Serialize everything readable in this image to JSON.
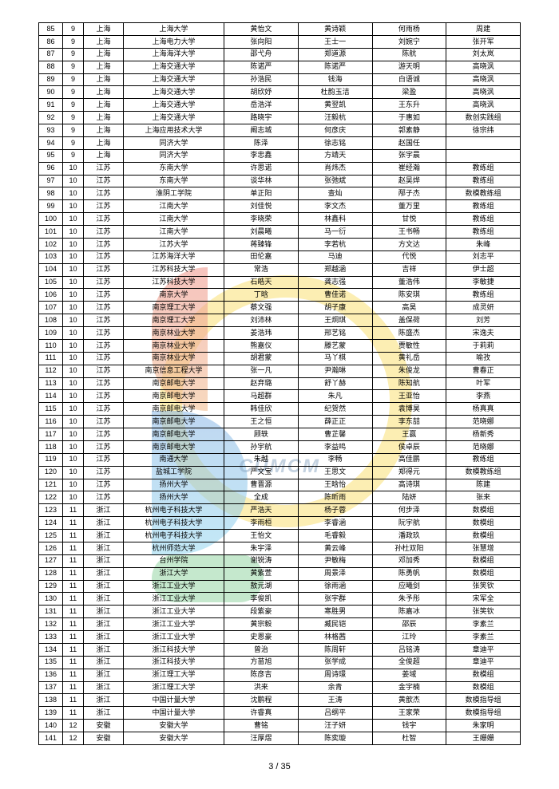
{
  "page_number": "3 / 35",
  "columns": [
    "c0",
    "c1",
    "c2",
    "c3",
    "c4",
    "c5",
    "c6",
    "c7"
  ],
  "rows": [
    [
      "85",
      "9",
      "上海",
      "上海大学",
      "黄怡文",
      "黄诗颖",
      "何雨杨",
      "周建"
    ],
    [
      "86",
      "9",
      "上海",
      "上海电力大学",
      "张向阳",
      "王士一",
      "刘婉宁",
      "张开军"
    ],
    [
      "87",
      "9",
      "上海",
      "上海海洋大学",
      "邵弋舟",
      "郑道源",
      "陈航",
      "刘太岚"
    ],
    [
      "88",
      "9",
      "上海",
      "上海交通大学",
      "陈诺严",
      "陈诺严",
      "游天明",
      "高晓沨"
    ],
    [
      "89",
      "9",
      "上海",
      "上海交通大学",
      "孙浩民",
      "钱海",
      "白语诚",
      "高晓沨"
    ],
    [
      "90",
      "9",
      "上海",
      "上海交通大学",
      "胡欣妤",
      "杜韵玉洁",
      "梁盈",
      "高晓沨"
    ],
    [
      "91",
      "9",
      "上海",
      "上海交通大学",
      "岳浩洋",
      "黄翌凯",
      "王东升",
      "高晓沨"
    ],
    [
      "92",
      "9",
      "上海",
      "上海交通大学",
      "路晓宇",
      "汪毅杭",
      "于惠如",
      "数创实践组"
    ],
    [
      "93",
      "9",
      "上海",
      "上海应用技术大学",
      "阚志城",
      "何彦庆",
      "郭素静",
      "徐宗纬"
    ],
    [
      "94",
      "9",
      "上海",
      "同济大学",
      "陈泽",
      "徐志铭",
      "赵国任",
      ""
    ],
    [
      "95",
      "9",
      "上海",
      "同济大学",
      "李忠鑫",
      "方靖天",
      "张宇晨",
      ""
    ],
    [
      "96",
      "10",
      "江苏",
      "东南大学",
      "许思诺",
      "肖炜杰",
      "崔经瀚",
      "教练组"
    ],
    [
      "97",
      "10",
      "江苏",
      "东南大学",
      "谈华林",
      "张弛斌",
      "赵吴烨",
      "教练组"
    ],
    [
      "98",
      "10",
      "江苏",
      "淮阴工学院",
      "单正阳",
      "查灿",
      "邴子杰",
      "数模教练组"
    ],
    [
      "99",
      "10",
      "江苏",
      "江南大学",
      "刘佳悦",
      "李文杰",
      "董万里",
      "教练组"
    ],
    [
      "100",
      "10",
      "江苏",
      "江南大学",
      "李晓荣",
      "林鑫科",
      "甘悦",
      "教练组"
    ],
    [
      "101",
      "10",
      "江苏",
      "江南大学",
      "刘晨曦",
      "马一衍",
      "王书畅",
      "教练组"
    ],
    [
      "102",
      "10",
      "江苏",
      "江苏大学",
      "蒋臻锋",
      "李若杭",
      "方文达",
      "朱峰"
    ],
    [
      "103",
      "10",
      "江苏",
      "江苏海洋大学",
      "田伦嘉",
      "马迪",
      "代悦",
      "刘志平"
    ],
    [
      "104",
      "10",
      "江苏",
      "江苏科技大学",
      "常浩",
      "郑越涵",
      "吉祥",
      "伊士超"
    ],
    [
      "105",
      "10",
      "江苏",
      "江苏科技大学",
      "石皓天",
      "龚志强",
      "董浩伟",
      "李敏捷"
    ],
    [
      "106",
      "10",
      "江苏",
      "南京大学",
      "丁晗",
      "曹佳诺",
      "陈安琪",
      "教练组"
    ],
    [
      "107",
      "10",
      "江苏",
      "南京理工大学",
      "蔡文强",
      "胡子康",
      "高昊",
      "成灵妍"
    ],
    [
      "108",
      "10",
      "江苏",
      "南京理工大学",
      "刘沛林",
      "王炯琪",
      "盖保荷",
      "刘芳"
    ],
    [
      "109",
      "10",
      "江苏",
      "南京林业大学",
      "姜浩玮",
      "邢艺铭",
      "陈盛杰",
      "宋逸夫"
    ],
    [
      "110",
      "10",
      "江苏",
      "南京林业大学",
      "熊嘉仪",
      "滕艺蒙",
      "贾敏性",
      "于莉莉"
    ],
    [
      "111",
      "10",
      "江苏",
      "南京林业大学",
      "胡君蒙",
      "马丫棋",
      "黄礼岳",
      "喻孜"
    ],
    [
      "112",
      "10",
      "江苏",
      "南京信息工程大学",
      "张一凡",
      "尹瀚琳",
      "朱俊龙",
      "曹春正"
    ],
    [
      "113",
      "10",
      "江苏",
      "南京邮电大学",
      "赵弃璐",
      "舒丫赫",
      "陈知航",
      "叶军"
    ],
    [
      "114",
      "10",
      "江苏",
      "南京邮电大学",
      "马超群",
      "朱凡",
      "王亚怡",
      "李燕"
    ],
    [
      "115",
      "10",
      "江苏",
      "南京邮电大学",
      "韩佳欣",
      "纪贺然",
      "袁博昊",
      "杨真真"
    ],
    [
      "116",
      "10",
      "江苏",
      "南京邮电大学",
      "王之恒",
      "薛正正",
      "李东喆",
      "范晓娜"
    ],
    [
      "117",
      "10",
      "江苏",
      "南京邮电大学",
      "顾轶",
      "曹芷馨",
      "王赢",
      "杨新秀"
    ],
    [
      "118",
      "10",
      "江苏",
      "南京邮电大学",
      "孙宇航",
      "李益鸣",
      "侯卓辰",
      "范晓娜"
    ],
    [
      "119",
      "10",
      "江苏",
      "南通大学",
      "朱越",
      "李畅",
      "高佳鹏",
      "教练组"
    ],
    [
      "120",
      "10",
      "江苏",
      "盐城工学院",
      "严文宝",
      "王思文",
      "郑得元",
      "数模教练组"
    ],
    [
      "121",
      "10",
      "江苏",
      "扬州大学",
      "曹晋源",
      "王晗怡",
      "高诗琪",
      "陈建"
    ],
    [
      "122",
      "10",
      "江苏",
      "扬州大学",
      "全成",
      "陈昕雨",
      "陆妍",
      "张来"
    ],
    [
      "123",
      "11",
      "浙江",
      "杭州电子科技大学",
      "严浩天",
      "杨子蓉",
      "何步泽",
      "数模组"
    ],
    [
      "124",
      "11",
      "浙江",
      "杭州电子科技大学",
      "李雨桓",
      "李睿涵",
      "阮宇航",
      "数模组"
    ],
    [
      "125",
      "11",
      "浙江",
      "杭州电子科技大学",
      "王怡文",
      "毛睿毅",
      "潘政玖",
      "数模组"
    ],
    [
      "126",
      "11",
      "浙江",
      "杭州师范大学",
      "朱宇泽",
      "黄云峰",
      "孙杜双阳",
      "张慧增"
    ],
    [
      "127",
      "11",
      "浙江",
      "台州学院",
      "谢锐涛",
      "尹敏梅",
      "邓加秀",
      "数模组"
    ],
    [
      "128",
      "11",
      "浙江",
      "浙江大学",
      "黄紫萱",
      "周景泽",
      "陈勇帆",
      "数模组"
    ],
    [
      "129",
      "11",
      "浙江",
      "浙江工业大学",
      "敖元湖",
      "徐雨涵",
      "应曦剑",
      "张笑钦"
    ],
    [
      "130",
      "11",
      "浙江",
      "浙江工业大学",
      "李俊凯",
      "张宇群",
      "朱予彤",
      "宋军全"
    ],
    [
      "131",
      "11",
      "浙江",
      "浙江工业大学",
      "段紫豪",
      "寒胜男",
      "陈嘉冰",
      "张笑钦"
    ],
    [
      "132",
      "11",
      "浙江",
      "浙江工业大学",
      "黄宗毅",
      "臧民铠",
      "邵辰",
      "李素兰"
    ],
    [
      "133",
      "11",
      "浙江",
      "浙江工业大学",
      "史恩豪",
      "林格茜",
      "江玲",
      "李素兰"
    ],
    [
      "134",
      "11",
      "浙江",
      "浙江科技大学",
      "曾治",
      "陈周轩",
      "吕铭涛",
      "章迪平"
    ],
    [
      "135",
      "11",
      "浙江",
      "浙江科技大学",
      "方苗旭",
      "张学成",
      "全俊超",
      "章迪平"
    ],
    [
      "136",
      "11",
      "浙江",
      "浙江理工大学",
      "陈彦吉",
      "周诗璟",
      "姜域",
      "数模组"
    ],
    [
      "137",
      "11",
      "浙江",
      "浙江理工大学",
      "洪来",
      "余青",
      "金宇楠",
      "数模组"
    ],
    [
      "138",
      "11",
      "浙江",
      "中国计量大学",
      "沈鹏程",
      "王涛",
      "黄歆杰",
      "数模指导组"
    ],
    [
      "139",
      "11",
      "浙江",
      "中国计量大学",
      "许睿真",
      "吕纲平",
      "王家荣",
      "数模指导组"
    ],
    [
      "140",
      "12",
      "安徽",
      "安徽大学",
      "曹铭",
      "汪子妍",
      "钱宇",
      "朱家明"
    ],
    [
      "141",
      "12",
      "安徽",
      "安徽大学",
      "汪厚熠",
      "陈奕璇",
      "杜智",
      "王姗姗"
    ]
  ]
}
